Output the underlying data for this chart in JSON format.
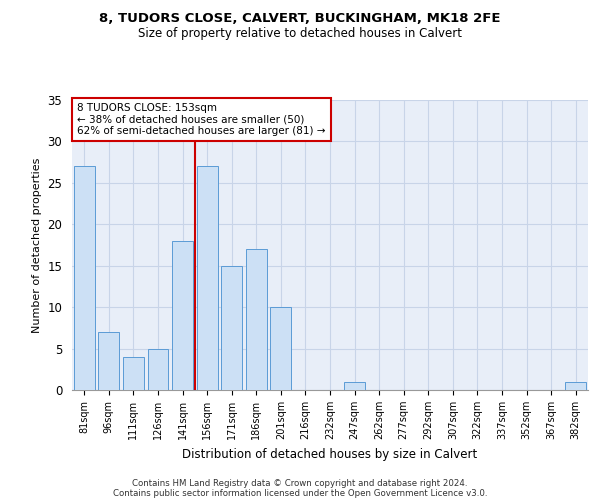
{
  "title1": "8, TUDORS CLOSE, CALVERT, BUCKINGHAM, MK18 2FE",
  "title2": "Size of property relative to detached houses in Calvert",
  "xlabel": "Distribution of detached houses by size in Calvert",
  "ylabel": "Number of detached properties",
  "bar_labels": [
    "81sqm",
    "96sqm",
    "111sqm",
    "126sqm",
    "141sqm",
    "156sqm",
    "171sqm",
    "186sqm",
    "201sqm",
    "216sqm",
    "232sqm",
    "247sqm",
    "262sqm",
    "277sqm",
    "292sqm",
    "307sqm",
    "322sqm",
    "337sqm",
    "352sqm",
    "367sqm",
    "382sqm"
  ],
  "bar_values": [
    27,
    7,
    4,
    5,
    18,
    27,
    15,
    17,
    10,
    0,
    0,
    1,
    0,
    0,
    0,
    0,
    0,
    0,
    0,
    0,
    1
  ],
  "bar_color": "#cce0f5",
  "bar_edgecolor": "#5b9bd5",
  "vline_color": "#cc0000",
  "annotation_text": "8 TUDORS CLOSE: 153sqm\n← 38% of detached houses are smaller (50)\n62% of semi-detached houses are larger (81) →",
  "annotation_box_facecolor": "#ffffff",
  "annotation_box_edgecolor": "#cc0000",
  "grid_color": "#c8d4e8",
  "background_color": "#e8eef8",
  "footer_line1": "Contains HM Land Registry data © Crown copyright and database right 2024.",
  "footer_line2": "Contains public sector information licensed under the Open Government Licence v3.0.",
  "ylim": [
    0,
    35
  ],
  "yticks": [
    0,
    5,
    10,
    15,
    20,
    25,
    30,
    35
  ]
}
